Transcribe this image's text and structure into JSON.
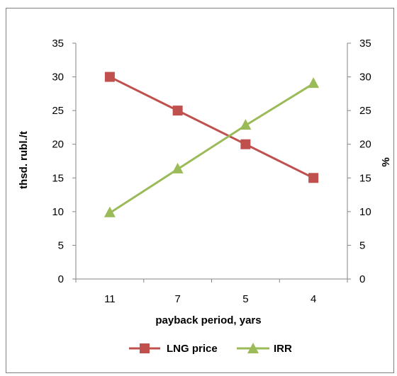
{
  "chart_data": {
    "type": "line",
    "categories": [
      "11",
      "7",
      "5",
      "4"
    ],
    "xlabel": "payback period, yars",
    "ylabel_left": "thsd. rubl./t",
    "ylabel_right": "%",
    "ylim": [
      0,
      35
    ],
    "yticks": [
      "0",
      "5",
      "10",
      "15",
      "20",
      "25",
      "30",
      "35"
    ],
    "grid": false,
    "legend_position": "bottom",
    "series": [
      {
        "name": "LNG price",
        "axis": "left",
        "values": [
          30,
          25,
          20,
          15
        ],
        "color": "#c0504d",
        "marker": "square"
      },
      {
        "name": "IRR",
        "axis": "right",
        "values": [
          9.8,
          16.3,
          22.8,
          29
        ],
        "color": "#9bbb59",
        "marker": "triangle"
      }
    ]
  }
}
